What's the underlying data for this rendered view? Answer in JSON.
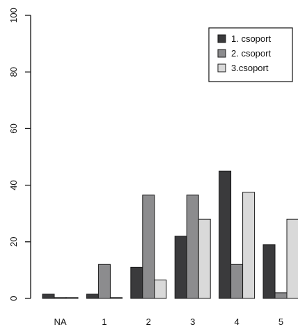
{
  "chart_data": {
    "type": "bar",
    "title": "",
    "xlabel": "",
    "ylabel": "",
    "categories": [
      "NA",
      "1",
      "2",
      "3",
      "4",
      "5"
    ],
    "series": [
      {
        "name": "1. csoport",
        "color": "#3a3a3c",
        "values": [
          1.5,
          1.5,
          11,
          22,
          45,
          19
        ]
      },
      {
        "name": "2. csoport",
        "color": "#8c8c8e",
        "values": [
          0.3,
          12,
          36.5,
          36.5,
          12,
          2
        ]
      },
      {
        "name": "3.csoport",
        "color": "#d9d9d9",
        "values": [
          0.3,
          0.3,
          6.5,
          28,
          37.5,
          28
        ]
      }
    ],
    "ylim": [
      0,
      100
    ],
    "yticks": [
      0,
      20,
      40,
      60,
      80,
      100
    ],
    "legend": {
      "position": "top-right"
    },
    "grid": false
  }
}
